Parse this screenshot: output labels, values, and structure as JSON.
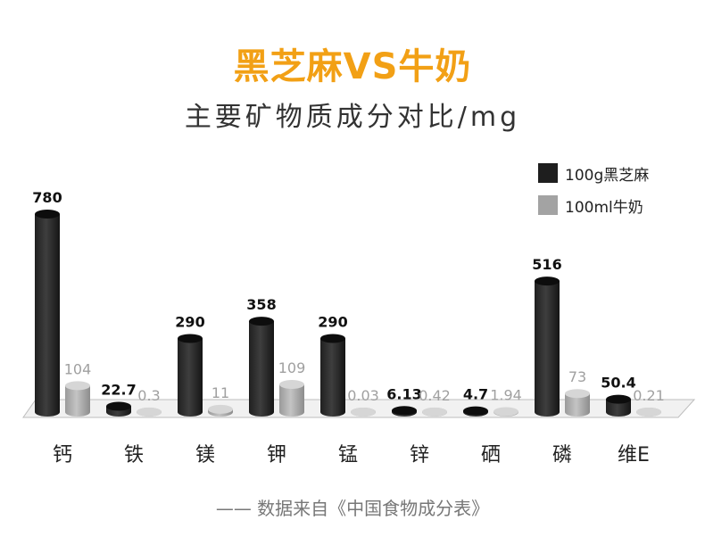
{
  "header": {
    "title": "黑芝麻VS牛奶",
    "subtitle": "主要矿物质成分对比/mg"
  },
  "legend": [
    {
      "label": "100g黑芝麻",
      "color": "#1e1e1e"
    },
    {
      "label": "100ml牛奶",
      "color": "#a3a3a3"
    }
  ],
  "chart_data": {
    "type": "bar",
    "categories": [
      "钙",
      "铁",
      "镁",
      "钾",
      "锰",
      "锌",
      "硒",
      "磷",
      "维E"
    ],
    "series": [
      {
        "name": "100g黑芝麻",
        "values": [
          780,
          22.7,
          290,
          358,
          290,
          6.13,
          4.7,
          516,
          50.4
        ],
        "labels": [
          "780",
          "22.7",
          "290",
          "358",
          "290",
          "6.13",
          "4.7",
          "516",
          "50.4"
        ]
      },
      {
        "name": "100ml牛奶",
        "values": [
          104,
          0.3,
          11,
          109,
          0.03,
          0.42,
          1.94,
          73,
          0.21
        ],
        "labels": [
          "104",
          "0.3",
          "11",
          "109",
          "0.03",
          "0.42",
          "1.94",
          "73",
          "0.21"
        ]
      }
    ],
    "colors": {
      "sesame": "#2f2f2f",
      "milk": "#a8a8a8",
      "sesame_label": "#111111",
      "milk_label": "#a0a0a0"
    },
    "title": "黑芝麻VS牛奶",
    "ylabel": "主要矿物质成分对比/mg",
    "ylim": [
      0,
      780
    ],
    "grid": false,
    "legend_position": "top-right"
  },
  "source": "—— 数据来自《中国食物成分表》"
}
